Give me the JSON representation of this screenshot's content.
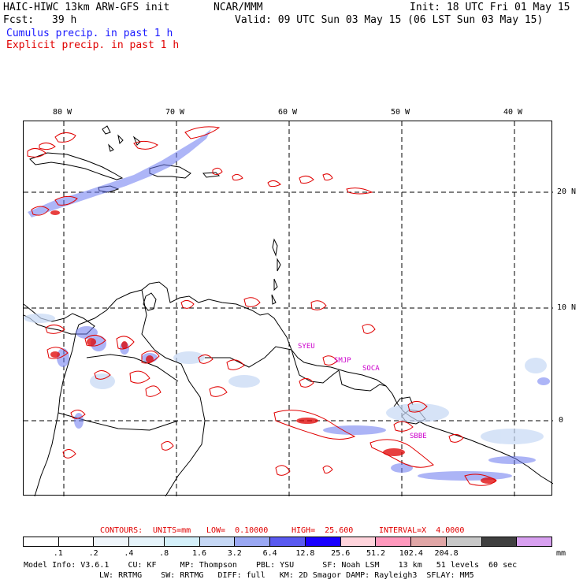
{
  "header": {
    "model_title": "HAIC-HIWC 13km ARW-GFS init",
    "org": "NCAR/MMM",
    "init": "Init: 18 UTC Fri 01 May 15",
    "fcst_label": "Fcst:",
    "fcst_value": "39 h",
    "valid": "Valid: 09 UTC Sun 03 May 15 (06 LST Sun 03 May 15)",
    "line_cumulus": "Cumulus precip. in past 1 h",
    "line_explicit": "Explicit precip. in past 1 h"
  },
  "colors": {
    "cumulus_text": "#1a1aff",
    "explicit_text": "#e00000",
    "contour_text": "#e00000",
    "station_text": "#cc00cc",
    "precip_contour": "#e00000",
    "precip_shade": "#6a78f0"
  },
  "map": {
    "lon_labels": [
      "80 W",
      "70 W",
      "60 W",
      "50 W",
      "40 W"
    ],
    "lat_labels": [
      "20 N",
      "10 N",
      "0"
    ],
    "stations": [
      "SYEU",
      "SMJP",
      "SOCA",
      "SBBE"
    ]
  },
  "contours": {
    "label": "CONTOURS:",
    "units": "UNITS=mm",
    "low": "LOW=  0.10000",
    "high": "HIGH=  25.600",
    "interval": "INTERVAL=X  4.0000"
  },
  "legend": {
    "unit": "mm",
    "swatch_colors": [
      "#ffffff",
      "#ffffff",
      "#f0f6fb",
      "#e6f4fb",
      "#d4f0fa",
      "#c6d8f5",
      "#9aa8f3",
      "#5a5af0",
      "#1a00ff",
      "#ffd4dc",
      "#ff99bd",
      "#e0a6a6",
      "#c8c8c8",
      "#404040",
      "#d8a0f0"
    ],
    "ticks": [
      ".1",
      ".2",
      ".4",
      ".8",
      "1.6",
      "3.2",
      "6.4",
      "12.8",
      "25.6",
      "51.2",
      "102.4",
      "204.8"
    ]
  },
  "footer": {
    "line1": "Model Info: V3.6.1    CU: KF     MP: Thompson    PBL: YSU      SF: Noah LSM    13 km   51 levels  60 sec",
    "line2": "LW: RRTMG    SW: RRTMG   DIFF: full   KM: 2D Smagor DAMP: Rayleigh3  SFLAY: MM5"
  }
}
